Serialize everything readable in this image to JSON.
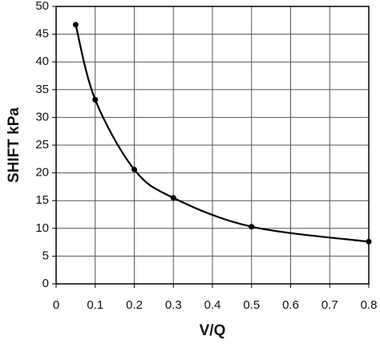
{
  "chart_data": {
    "type": "line",
    "xlabel": "V/Q",
    "ylabel": "SHIFT kPa",
    "x": [
      0.05,
      0.1,
      0.2,
      0.3,
      0.5,
      0.8
    ],
    "series": [
      {
        "color": "#000000",
        "values": [
          46.7,
          33.2,
          20.6,
          15.5,
          10.3,
          7.6
        ]
      }
    ],
    "xlim": [
      0,
      0.8
    ],
    "xticks": [
      0,
      0.1,
      0.2,
      0.3,
      0.4,
      0.5,
      0.6,
      0.7,
      0.8
    ],
    "ylim": [
      0,
      50
    ],
    "yticks": [
      0,
      5,
      10,
      15,
      20,
      25,
      30,
      35,
      40,
      45,
      50
    ],
    "grid": true
  }
}
